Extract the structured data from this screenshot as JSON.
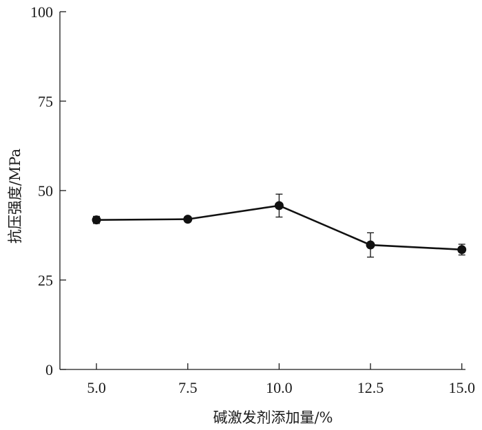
{
  "chart_data": {
    "type": "line",
    "title": "",
    "xlabel": "碱激发剂添加量/%",
    "ylabel": "抗压强度/MPa",
    "x": [
      5.0,
      7.5,
      10.0,
      12.5,
      15.0
    ],
    "x_tick_labels": [
      "5.0",
      "7.5",
      "10.0",
      "12.5",
      "15.0"
    ],
    "y_ticks": [
      0,
      25,
      50,
      75,
      100
    ],
    "y_tick_labels": [
      "0",
      "25",
      "50",
      "75",
      "100"
    ],
    "xlim": [
      4.0,
      15.1
    ],
    "ylim": [
      0,
      100
    ],
    "grid": false,
    "series": [
      {
        "values": [
          41.8,
          42.0,
          45.8,
          34.8,
          33.5
        ],
        "errors": [
          1.0,
          0.5,
          3.2,
          3.4,
          1.5
        ]
      }
    ]
  }
}
